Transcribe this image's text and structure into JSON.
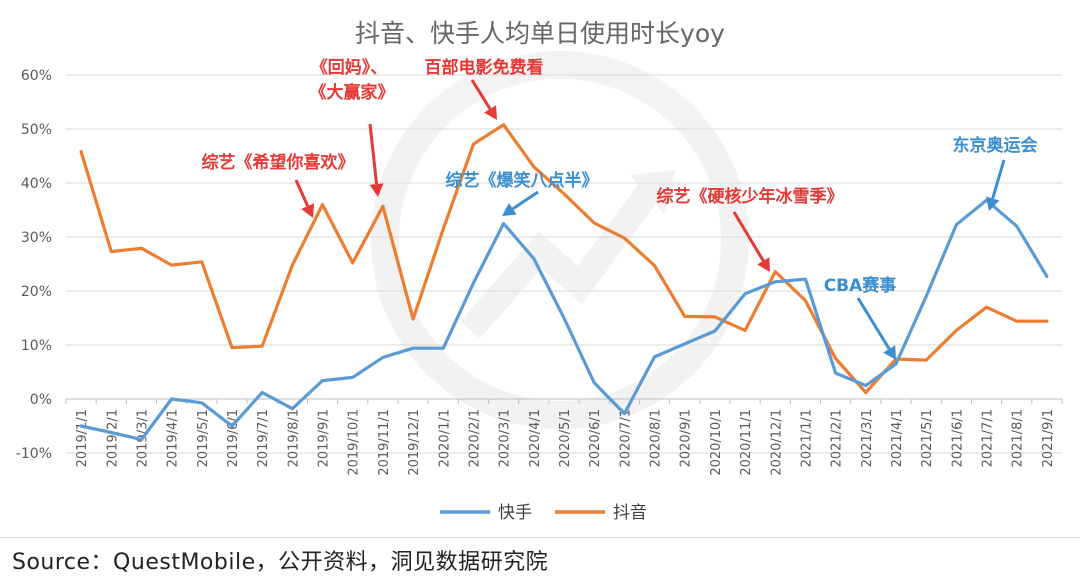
{
  "chart_data": {
    "type": "line",
    "title": "抖音、快手人均单日使用时长yoy",
    "x": [
      "2019/1/1",
      "2019/2/1",
      "2019/3/1",
      "2019/4/1",
      "2019/5/1",
      "2019/6/1",
      "2019/7/1",
      "2019/8/1",
      "2019/9/1",
      "2019/10/1",
      "2019/11/1",
      "2019/12/1",
      "2020/1/1",
      "2020/2/1",
      "2020/3/1",
      "2020/4/1",
      "2020/5/1",
      "2020/6/1",
      "2020/7/1",
      "2020/8/1",
      "2020/9/1",
      "2020/10/1",
      "2020/11/1",
      "2020/12/1",
      "2021/1/1",
      "2021/2/1",
      "2021/3/1",
      "2021/4/1",
      "2021/5/1",
      "2021/6/1",
      "2021/7/1",
      "2021/8/1",
      "2021/9/1"
    ],
    "ylim": [
      -10,
      60
    ],
    "yticks": [
      -10,
      0,
      10,
      20,
      30,
      40,
      50,
      60
    ],
    "ytick_labels": [
      "-10%",
      "0%",
      "10%",
      "20%",
      "30%",
      "40%",
      "50%",
      "60%"
    ],
    "grid": true,
    "legend_position": "bottom",
    "series": [
      {
        "name": "快手",
        "color": "#5B9BD5",
        "values": [
          -5,
          -6.2,
          -7.5,
          0,
          -0.7,
          -5,
          1.2,
          -1.8,
          3.4,
          4,
          7.7,
          9.4,
          9.4,
          21.5,
          32.5,
          26,
          15,
          3,
          -2.7,
          7.8,
          10.2,
          12.6,
          19.5,
          21.7,
          22.2,
          4.8,
          2.5,
          6.5,
          19,
          32.3,
          36.8,
          32,
          22.7
        ]
      },
      {
        "name": "抖音",
        "color": "#ED7D31",
        "values": [
          45.8,
          27.3,
          27.9,
          24.8,
          25.4,
          9.5,
          9.8,
          24.8,
          36,
          25.2,
          35.7,
          14.8,
          31.5,
          47.2,
          50.8,
          43,
          38,
          32.6,
          29.8,
          24.7,
          15.3,
          15.2,
          12.7,
          23.6,
          18.2,
          7.5,
          1.2,
          7.4,
          7.2,
          12.7,
          17,
          14.4,
          14.4
        ]
      }
    ],
    "annotations": [
      {
        "text": "综艺《希望你喜欢》",
        "color": "#E53935"
      },
      {
        "text": "《回妈》、",
        "color": "#E53935"
      },
      {
        "text": "《大赢家》",
        "color": "#E53935"
      },
      {
        "text": "百部电影免费看",
        "color": "#E53935"
      },
      {
        "text": "综艺《爆笑八点半》",
        "color": "#3B8FD0"
      },
      {
        "text": "综艺《硬核少年冰雪季》",
        "color": "#E53935"
      },
      {
        "text": "CBA赛事",
        "color": "#3B8FD0"
      },
      {
        "text": "东京奥运会",
        "color": "#3B8FD0"
      }
    ]
  },
  "source": "Source：QuestMobile，公开资料，洞见数据研究院"
}
